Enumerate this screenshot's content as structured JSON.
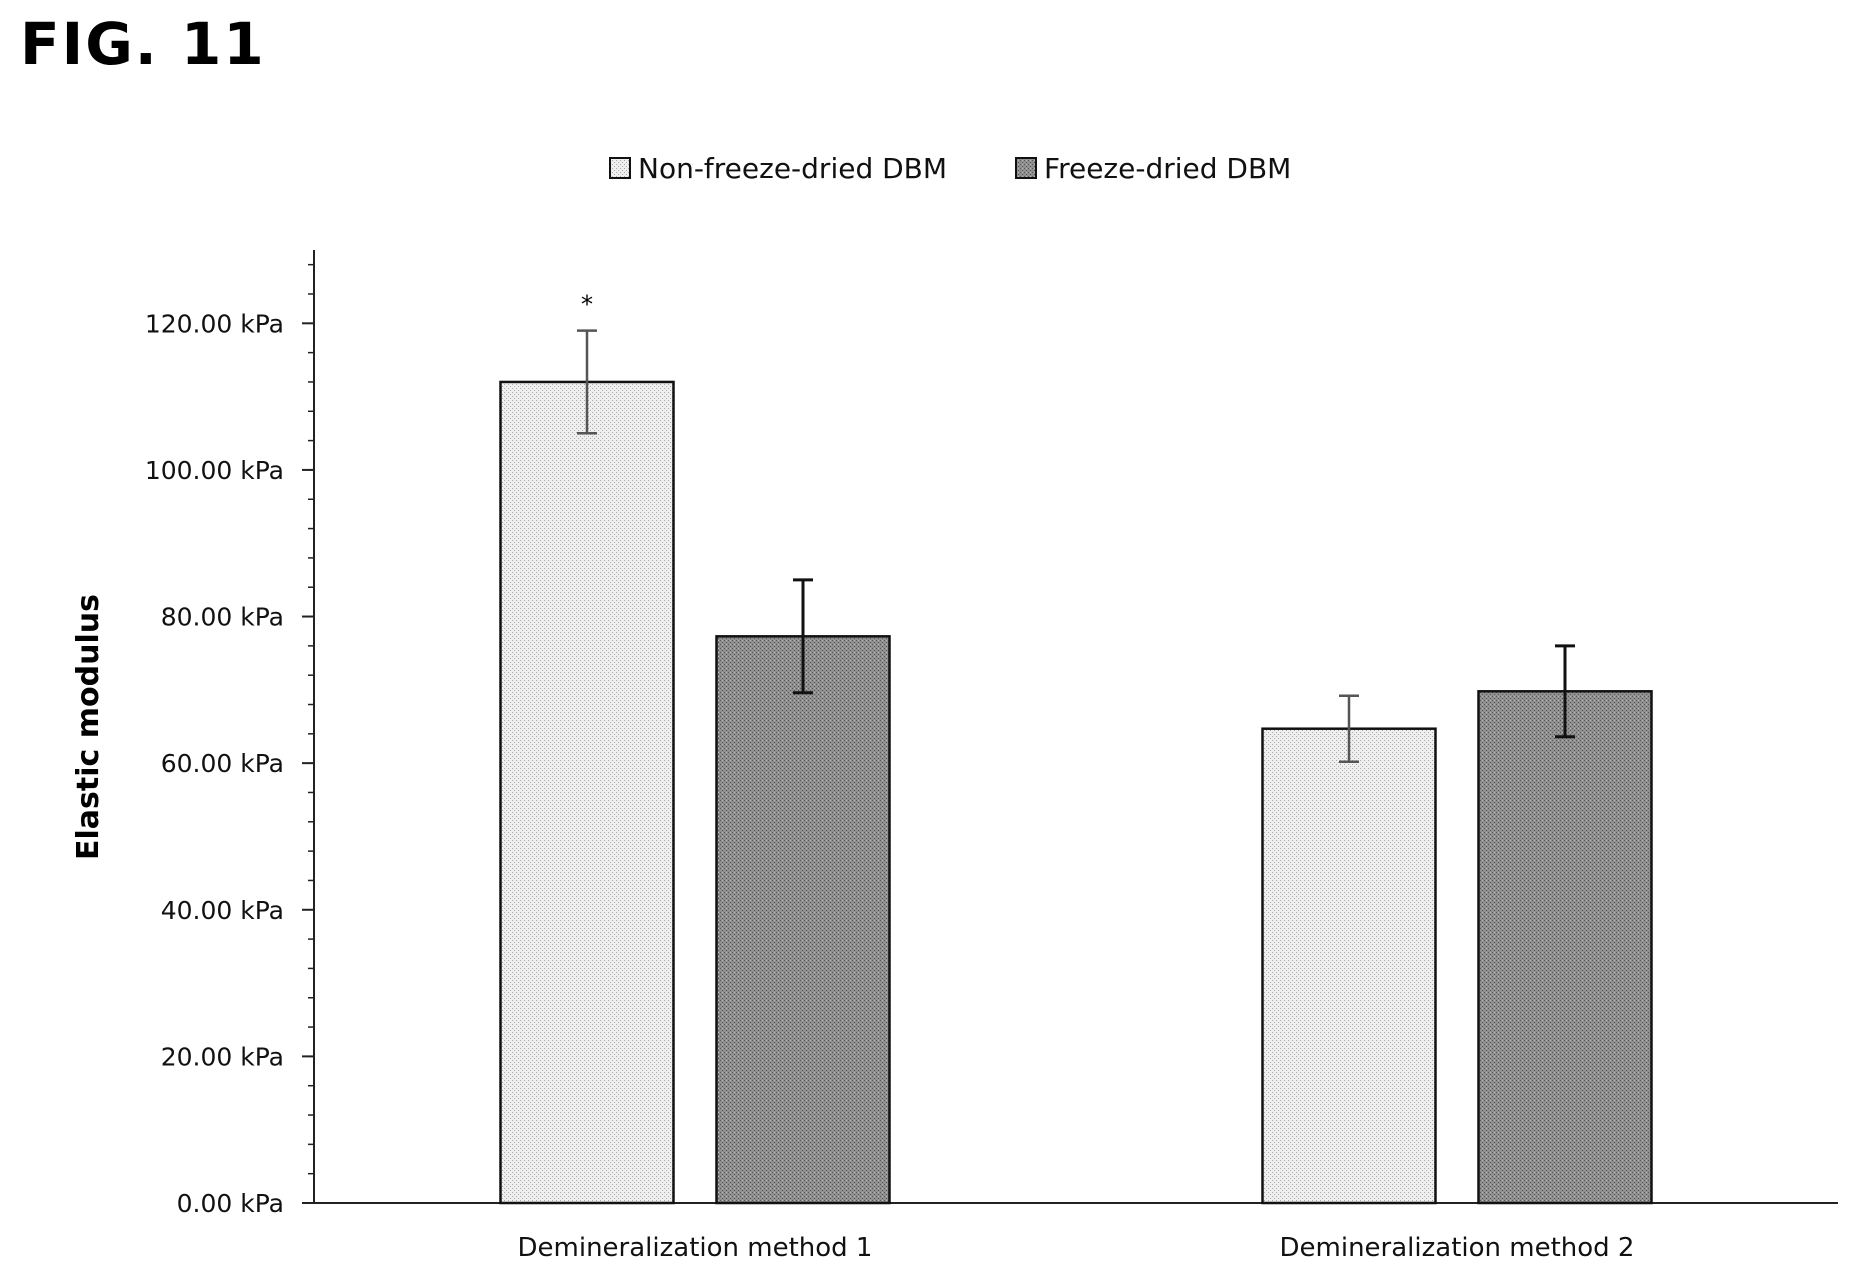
{
  "figure_label": "FIG. 11",
  "chart_data": {
    "type": "bar",
    "categories": [
      "Demineralization method 1",
      "Demineralization method 2"
    ],
    "series": [
      {
        "name": "Non-freeze-dried DBM",
        "values": [
          112,
          64.7
        ],
        "errors": [
          7,
          4.5
        ],
        "color": "#ececec",
        "pattern": "dotted-light"
      },
      {
        "name": "Freeze-dried DBM",
        "values": [
          77.3,
          69.8
        ],
        "errors": [
          7.7,
          6.2
        ],
        "color": "#8c8c8c",
        "pattern": "dotted-dark"
      }
    ],
    "annotations": [
      {
        "category_index": 0,
        "series_index": 0,
        "text": "*"
      }
    ],
    "xlabel": "",
    "ylabel": "Elastic modulus",
    "ylim": [
      0,
      130
    ],
    "yticks": [
      0,
      20,
      40,
      60,
      80,
      100,
      120
    ],
    "ytick_labels": [
      "0.00 kPa",
      "20.00 kPa",
      "40.00 kPa",
      "60.00 kPa",
      "80.00 kPa",
      "100.00 kPa",
      "120.00 kPa"
    ],
    "minor_ticks_per_major": 5,
    "legend_position": "top-center",
    "grid": false
  }
}
